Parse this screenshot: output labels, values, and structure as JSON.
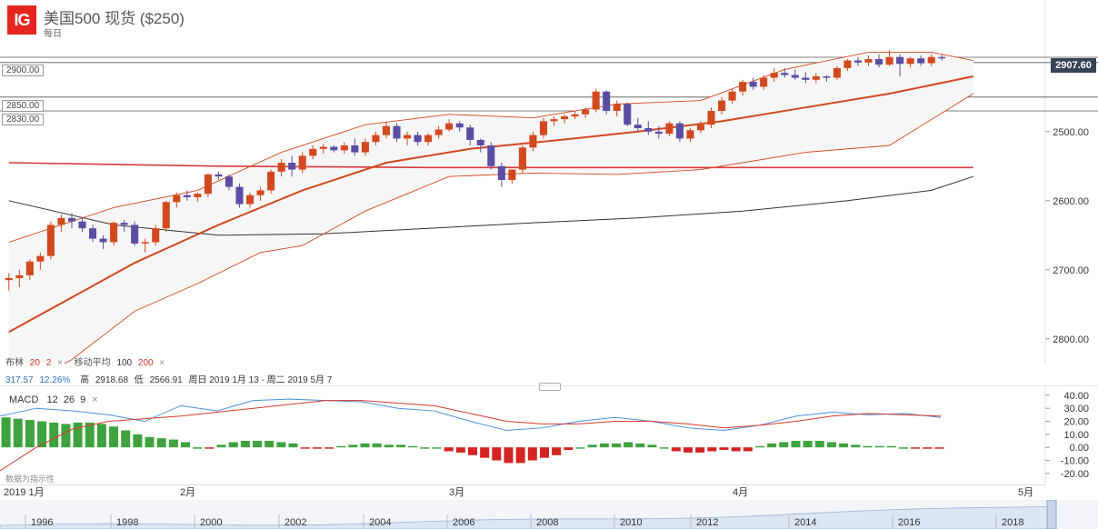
{
  "header": {
    "logo_text": "IG",
    "title": "美国500 现货 ($250)",
    "subtitle": "每日"
  },
  "price_tag": "2907.60",
  "h_lines": [
    "2900.00",
    "2850.00",
    "2830.00"
  ],
  "y_axis_main": [
    "2800.00",
    "2700.00",
    "2600.00",
    "2500.00"
  ],
  "y_axis_macd": [
    "40.00",
    "30.00",
    "20.00",
    "10.00",
    "0.00",
    "-10.00",
    "-20.00"
  ],
  "indicator_row1": {
    "bollinger_label": "布林",
    "bollinger_p1": "20",
    "bollinger_p2": "2",
    "ma_label": "移动平均",
    "ma_p1": "100",
    "ma_p2": "200",
    "close": "×"
  },
  "indicator_row2": {
    "v1": "317.57",
    "v2": "12.26%",
    "high_label": "高",
    "high": "2918.68",
    "low_label": "低",
    "low": "2566.91",
    "range": "周日 2019 1月 13 - 周二 2019 5月 7"
  },
  "macd": {
    "label": "MACD",
    "p1": "12",
    "p2": "26",
    "p3": "9",
    "close": "×"
  },
  "watermark": "数据为指示性",
  "x_axis": [
    "2019 1月",
    "2月",
    "3月",
    "4月",
    "5月"
  ],
  "navigator_years": [
    "1996",
    "1998",
    "2000",
    "2002",
    "2004",
    "2006",
    "2008",
    "2010",
    "2012",
    "2014",
    "2016",
    "2018"
  ],
  "colors": {
    "up": "#d2491f",
    "down": "#5a4da3",
    "macd_pos": "#3ea33e",
    "macd_neg": "#d42323",
    "ma200": "#d63b3b",
    "ma100": "#333333",
    "bb": "#d2491f"
  },
  "chart_data": [
    {
      "type": "candlestick",
      "title": "美国500 现货 ($250)",
      "period": "每日",
      "ylim": [
        2480,
        2930
      ],
      "y_ticks": [
        2500,
        2600,
        2700,
        2800
      ],
      "months": [
        "2019 1月",
        "2月",
        "3月",
        "4月",
        "5月"
      ],
      "candles": [
        [
          2585,
          2595,
          2570,
          2588
        ],
        [
          2588,
          2600,
          2575,
          2592
        ],
        [
          2592,
          2615,
          2585,
          2612
        ],
        [
          2612,
          2625,
          2600,
          2620
        ],
        [
          2620,
          2670,
          2615,
          2665
        ],
        [
          2665,
          2680,
          2655,
          2675
        ],
        [
          2675,
          2682,
          2660,
          2670
        ],
        [
          2670,
          2675,
          2655,
          2660
        ],
        [
          2660,
          2665,
          2640,
          2645
        ],
        [
          2645,
          2650,
          2630,
          2640
        ],
        [
          2640,
          2670,
          2635,
          2668
        ],
        [
          2668,
          2672,
          2655,
          2665
        ],
        [
          2665,
          2670,
          2635,
          2638
        ],
        [
          2638,
          2645,
          2625,
          2640
        ],
        [
          2640,
          2665,
          2635,
          2660
        ],
        [
          2660,
          2700,
          2655,
          2698
        ],
        [
          2698,
          2712,
          2690,
          2708
        ],
        [
          2708,
          2715,
          2700,
          2705
        ],
        [
          2705,
          2712,
          2698,
          2710
        ],
        [
          2710,
          2740,
          2705,
          2738
        ],
        [
          2738,
          2742,
          2730,
          2735
        ],
        [
          2735,
          2738,
          2715,
          2720
        ],
        [
          2720,
          2725,
          2690,
          2695
        ],
        [
          2695,
          2712,
          2690,
          2708
        ],
        [
          2708,
          2720,
          2700,
          2715
        ],
        [
          2715,
          2745,
          2710,
          2742
        ],
        [
          2742,
          2760,
          2735,
          2755
        ],
        [
          2755,
          2765,
          2735,
          2745
        ],
        [
          2745,
          2770,
          2740,
          2765
        ],
        [
          2765,
          2780,
          2760,
          2775
        ],
        [
          2775,
          2782,
          2768,
          2778
        ],
        [
          2778,
          2780,
          2770,
          2773
        ],
        [
          2773,
          2785,
          2768,
          2780
        ],
        [
          2780,
          2790,
          2765,
          2770
        ],
        [
          2770,
          2790,
          2765,
          2785
        ],
        [
          2785,
          2800,
          2780,
          2795
        ],
        [
          2795,
          2815,
          2790,
          2808
        ],
        [
          2808,
          2812,
          2785,
          2790
        ],
        [
          2790,
          2800,
          2780,
          2795
        ],
        [
          2795,
          2800,
          2780,
          2785
        ],
        [
          2785,
          2798,
          2780,
          2795
        ],
        [
          2795,
          2808,
          2790,
          2803
        ],
        [
          2803,
          2818,
          2800,
          2812
        ],
        [
          2812,
          2815,
          2800,
          2806
        ],
        [
          2806,
          2810,
          2780,
          2788
        ],
        [
          2788,
          2790,
          2770,
          2780
        ],
        [
          2780,
          2785,
          2745,
          2750
        ],
        [
          2750,
          2755,
          2720,
          2730
        ],
        [
          2730,
          2745,
          2725,
          2745
        ],
        [
          2745,
          2780,
          2740,
          2777
        ],
        [
          2777,
          2800,
          2772,
          2795
        ],
        [
          2795,
          2820,
          2790,
          2815
        ],
        [
          2815,
          2822,
          2808,
          2818
        ],
        [
          2818,
          2825,
          2812,
          2822
        ],
        [
          2822,
          2830,
          2818,
          2825
        ],
        [
          2825,
          2835,
          2820,
          2832
        ],
        [
          2832,
          2862,
          2828,
          2858
        ],
        [
          2858,
          2860,
          2825,
          2830
        ],
        [
          2830,
          2845,
          2822,
          2840
        ],
        [
          2840,
          2842,
          2808,
          2810
        ],
        [
          2810,
          2820,
          2800,
          2805
        ],
        [
          2805,
          2815,
          2795,
          2800
        ],
        [
          2800,
          2808,
          2790,
          2797
        ],
        [
          2797,
          2815,
          2793,
          2812
        ],
        [
          2812,
          2815,
          2785,
          2790
        ],
        [
          2790,
          2805,
          2785,
          2802
        ],
        [
          2802,
          2815,
          2798,
          2810
        ],
        [
          2810,
          2835,
          2805,
          2830
        ],
        [
          2830,
          2850,
          2825,
          2845
        ],
        [
          2845,
          2862,
          2840,
          2858
        ],
        [
          2858,
          2875,
          2852,
          2872
        ],
        [
          2872,
          2878,
          2860,
          2865
        ],
        [
          2865,
          2882,
          2860,
          2878
        ],
        [
          2878,
          2892,
          2872,
          2885
        ],
        [
          2885,
          2892,
          2878,
          2882
        ],
        [
          2882,
          2890,
          2875,
          2878
        ],
        [
          2878,
          2886,
          2870,
          2875
        ],
        [
          2875,
          2885,
          2870,
          2880
        ],
        [
          2880,
          2882,
          2872,
          2878
        ],
        [
          2878,
          2895,
          2875,
          2892
        ],
        [
          2892,
          2905,
          2888,
          2903
        ],
        [
          2903,
          2908,
          2895,
          2900
        ],
        [
          2900,
          2910,
          2895,
          2905
        ],
        [
          2905,
          2912,
          2893,
          2897
        ],
        [
          2897,
          2918,
          2895,
          2908
        ],
        [
          2908,
          2912,
          2880,
          2898
        ],
        [
          2898,
          2908,
          2893,
          2906
        ],
        [
          2906,
          2910,
          2895,
          2899
        ],
        [
          2899,
          2912,
          2895,
          2908
        ],
        [
          2908,
          2911,
          2903,
          2907
        ]
      ],
      "bollinger_upper": [
        [
          0,
          2640
        ],
        [
          10,
          2690
        ],
        [
          18,
          2715
        ],
        [
          26,
          2770
        ],
        [
          34,
          2810
        ],
        [
          42,
          2825
        ],
        [
          50,
          2820
        ],
        [
          58,
          2840
        ],
        [
          66,
          2845
        ],
        [
          74,
          2890
        ],
        [
          82,
          2915
        ],
        [
          88,
          2915
        ],
        [
          92,
          2903
        ]
      ],
      "bollinger_middle": [
        [
          0,
          2510
        ],
        [
          6,
          2560
        ],
        [
          12,
          2610
        ],
        [
          20,
          2665
        ],
        [
          28,
          2715
        ],
        [
          36,
          2755
        ],
        [
          44,
          2775
        ],
        [
          52,
          2787
        ],
        [
          60,
          2800
        ],
        [
          68,
          2815
        ],
        [
          76,
          2835
        ],
        [
          84,
          2855
        ],
        [
          92,
          2880
        ]
      ],
      "bollinger_lower": [
        [
          0,
          2420
        ],
        [
          6,
          2470
        ],
        [
          12,
          2540
        ],
        [
          18,
          2580
        ],
        [
          24,
          2625
        ],
        [
          28,
          2635
        ],
        [
          34,
          2685
        ],
        [
          42,
          2735
        ],
        [
          50,
          2740
        ],
        [
          58,
          2738
        ],
        [
          66,
          2745
        ],
        [
          70,
          2755
        ],
        [
          76,
          2770
        ],
        [
          84,
          2780
        ],
        [
          92,
          2855
        ]
      ],
      "ma100": [
        [
          0,
          2700
        ],
        [
          10,
          2665
        ],
        [
          20,
          2650
        ],
        [
          30,
          2652
        ],
        [
          40,
          2660
        ],
        [
          50,
          2668
        ],
        [
          60,
          2675
        ],
        [
          70,
          2685
        ],
        [
          80,
          2700
        ],
        [
          88,
          2715
        ],
        [
          92,
          2735
        ]
      ],
      "ma200": [
        [
          0,
          2755
        ],
        [
          20,
          2750
        ],
        [
          40,
          2748
        ],
        [
          60,
          2748
        ],
        [
          80,
          2748
        ],
        [
          92,
          2748
        ]
      ],
      "h_lines": [
        2907.6,
        2900,
        2850,
        2830
      ]
    },
    {
      "type": "macd",
      "title": "MACD 12 26 9",
      "ylim": [
        -25,
        42
      ],
      "y_ticks": [
        40,
        30,
        20,
        10,
        0,
        -10,
        -20
      ],
      "histogram": [
        23,
        22,
        21,
        20,
        19,
        18,
        19,
        19,
        18,
        16,
        13,
        10,
        8,
        7,
        6,
        4,
        0,
        -1,
        2,
        4,
        5,
        5,
        5,
        4,
        3,
        -1,
        -1,
        -1,
        1,
        2,
        3,
        3,
        2,
        2,
        1,
        0,
        0,
        -3,
        -4,
        -6,
        -8,
        -10,
        -12,
        -12,
        -10,
        -8,
        -6,
        -2,
        0,
        2,
        3,
        3,
        4,
        3,
        2,
        0,
        -3,
        -4,
        -4,
        -3,
        -2,
        -3,
        -3,
        1,
        3,
        4,
        5,
        5,
        5,
        4,
        3,
        2,
        1,
        1,
        1,
        0,
        -1,
        -1,
        -1
      ],
      "macd_line": [
        [
          0,
          24
        ],
        [
          4,
          30
        ],
        [
          8,
          28
        ],
        [
          12,
          25
        ],
        [
          16,
          20
        ],
        [
          20,
          32
        ],
        [
          24,
          28
        ],
        [
          28,
          36
        ],
        [
          32,
          37
        ],
        [
          36,
          36
        ],
        [
          40,
          35
        ],
        [
          44,
          30
        ],
        [
          48,
          28
        ],
        [
          52,
          20
        ],
        [
          56,
          13
        ],
        [
          60,
          15
        ],
        [
          64,
          20
        ],
        [
          68,
          23
        ],
        [
          72,
          20
        ],
        [
          76,
          15
        ],
        [
          80,
          13
        ],
        [
          84,
          17
        ],
        [
          88,
          24
        ],
        [
          92,
          27
        ],
        [
          96,
          25
        ],
        [
          100,
          26
        ],
        [
          104,
          23
        ]
      ],
      "signal_line": [
        [
          0,
          -18
        ],
        [
          4,
          0
        ],
        [
          8,
          14
        ],
        [
          12,
          20
        ],
        [
          16,
          22
        ],
        [
          20,
          24
        ],
        [
          28,
          30
        ],
        [
          36,
          36
        ],
        [
          40,
          36
        ],
        [
          44,
          34
        ],
        [
          48,
          32
        ],
        [
          52,
          26
        ],
        [
          56,
          20
        ],
        [
          60,
          18
        ],
        [
          64,
          18
        ],
        [
          68,
          20
        ],
        [
          72,
          20
        ],
        [
          76,
          18
        ],
        [
          80,
          15
        ],
        [
          84,
          17
        ],
        [
          88,
          20
        ],
        [
          92,
          24
        ],
        [
          96,
          26
        ],
        [
          100,
          25
        ],
        [
          104,
          24
        ]
      ]
    }
  ]
}
